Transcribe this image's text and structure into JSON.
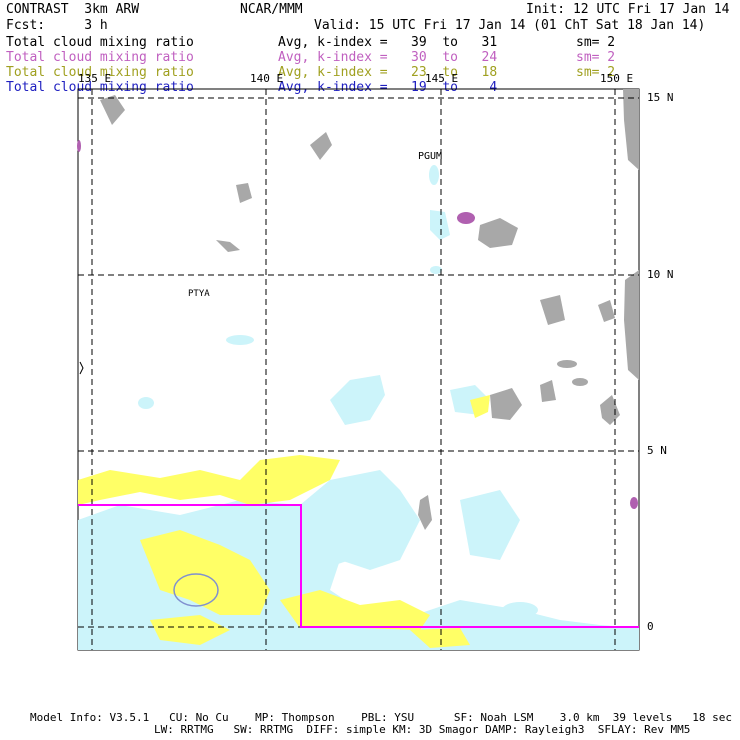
{
  "header": {
    "title": "CONTRAST  3km ARW",
    "center": "NCAR/MMM",
    "init": "Init: 12 UTC Fri 17 Jan 14",
    "fcst": "Fcst:     3 h",
    "valid": "Valid: 15 UTC Fri 17 Jan 14 (01 ChT Sat 18 Jan 14)"
  },
  "fields": [
    {
      "name": "Total cloud mixing ratio",
      "stats": "Avg, k-index =   39  to   31",
      "sm": "sm= 2",
      "color": "#000000"
    },
    {
      "name": "Total cloud mixing ratio",
      "stats": "Avg, k-index =   30  to   24",
      "sm": "sm= 2",
      "color": "#c060c0"
    },
    {
      "name": "Total cloud mixing ratio",
      "stats": "Avg, k-index =   23  to   18",
      "sm": "sm= 2",
      "color": "#a0a020"
    },
    {
      "name": "Total cloud mixing ratio",
      "stats": "Avg, k-index =   19  to    4",
      "sm": "",
      "color": "#2020c0"
    }
  ],
  "map": {
    "lon_labels": [
      "135 E",
      "140 E",
      "145 E",
      "150 E"
    ],
    "lat_labels": [
      "15 N",
      "10 N",
      "5 N",
      "0"
    ],
    "place_labels": [
      "PGUM",
      "PTYA"
    ],
    "colors": {
      "gray": "#a8a8a8",
      "cyan": "#ccf4fa",
      "yellow": "#ffff66",
      "purple": "#b060b0",
      "magenta": "#ff00ff"
    }
  },
  "footer": {
    "line1": "Model Info: V3.5.1   CU: No Cu    MP: Thompson    PBL: YSU      SF: Noah LSM    3.0 km  39 levels   18 sec",
    "line2": "LW: RRTMG   SW: RRTMG  DIFF: simple KM: 3D Smagor DAMP: Rayleigh3  SFLAY: Rev MM5"
  }
}
